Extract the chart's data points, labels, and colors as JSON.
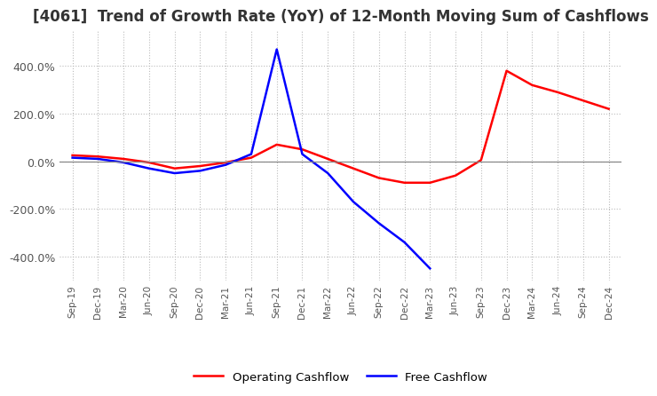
{
  "title": "[4061]  Trend of Growth Rate (YoY) of 12-Month Moving Sum of Cashflows",
  "title_fontsize": 12,
  "title_color": "#333333",
  "ylim": [
    -500,
    550
  ],
  "yticks": [
    -400,
    -200,
    0,
    200,
    400
  ],
  "ytick_labels": [
    "-400.0%",
    "-200.0%",
    "0.0%",
    "200.0%",
    "400.0%"
  ],
  "background_color": "#ffffff",
  "grid_color": "#bbbbbb",
  "legend_labels": [
    "Operating Cashflow",
    "Free Cashflow"
  ],
  "legend_colors": [
    "red",
    "blue"
  ],
  "x_labels": [
    "Sep-19",
    "Dec-19",
    "Mar-20",
    "Jun-20",
    "Sep-20",
    "Dec-20",
    "Mar-21",
    "Jun-21",
    "Sep-21",
    "Dec-21",
    "Mar-22",
    "Jun-22",
    "Sep-22",
    "Dec-22",
    "Mar-23",
    "Jun-23",
    "Sep-23",
    "Dec-23",
    "Mar-24",
    "Jun-24",
    "Sep-24",
    "Dec-24"
  ],
  "operating_cashflow": [
    25,
    20,
    10,
    -5,
    -30,
    -20,
    -5,
    15,
    70,
    50,
    10,
    -30,
    -70,
    -90,
    -90,
    -60,
    5,
    380,
    320,
    290,
    255,
    220
  ],
  "free_cashflow": [
    15,
    10,
    -5,
    -30,
    -50,
    -40,
    -15,
    30,
    470,
    30,
    -50,
    -170,
    -260,
    -340,
    -450,
    null,
    null,
    null,
    null,
    null,
    null,
    null
  ]
}
